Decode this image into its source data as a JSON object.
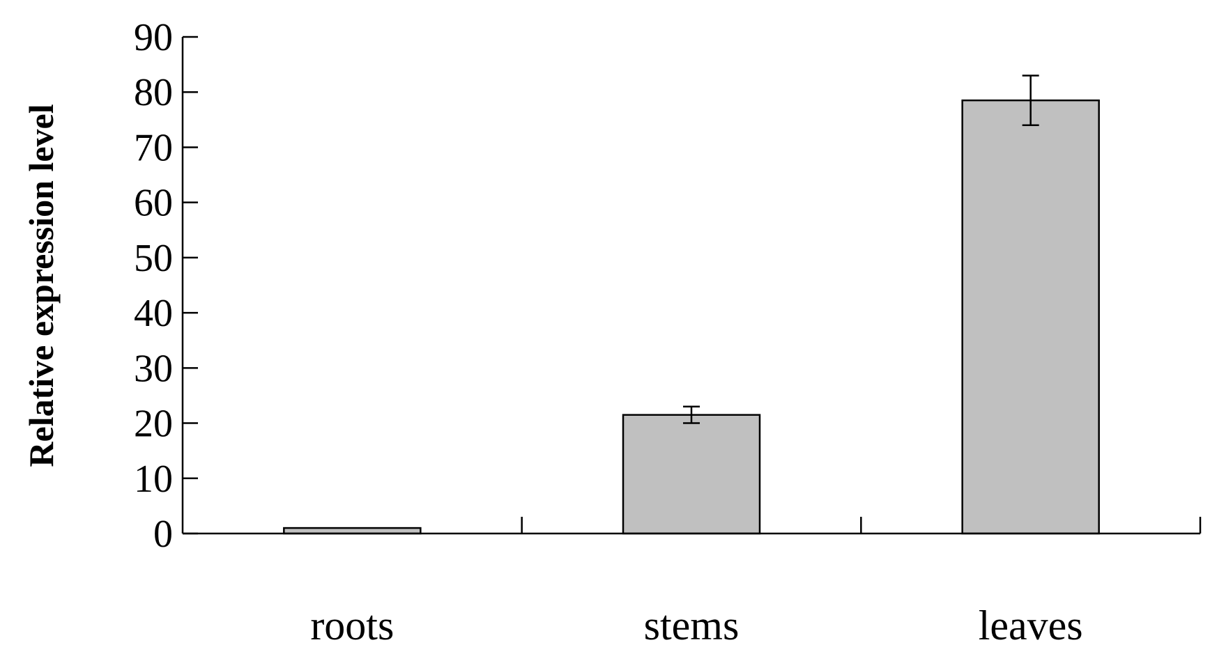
{
  "chart_data": {
    "type": "bar",
    "title": "",
    "xlabel": "",
    "ylabel": "Relative expression level",
    "categories": [
      "roots",
      "stems",
      "leaves"
    ],
    "values": [
      1,
      21.5,
      78.5
    ],
    "error": [
      0,
      1.5,
      4.5
    ],
    "ylim": [
      0,
      90
    ],
    "yticks": [
      0,
      10,
      20,
      30,
      40,
      50,
      60,
      70,
      80,
      90
    ],
    "grid": false,
    "legend": "none",
    "bar_color": "#c0c0c0",
    "bar_edge_color": "#000000"
  }
}
